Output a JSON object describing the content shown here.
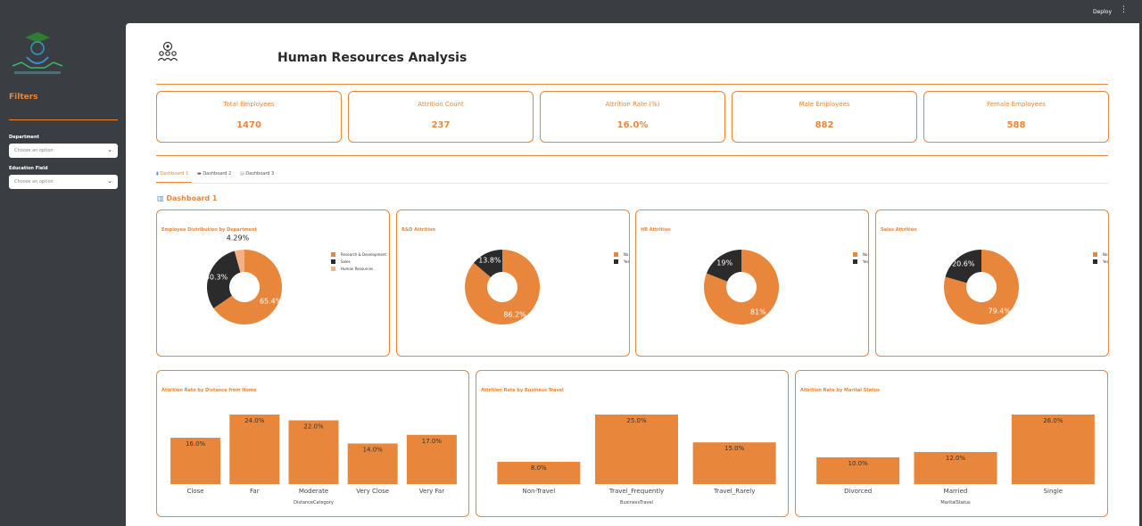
{
  "header": {
    "deploy_label": "Deploy",
    "menu_icon": "kebab-icon"
  },
  "sidebar": {
    "filters_title": "Filters",
    "department": {
      "label": "Department",
      "placeholder": "Choose an option"
    },
    "education_field": {
      "label": "Education Field",
      "placeholder": "Choose an option"
    }
  },
  "page": {
    "title": "Human Resources Analysis"
  },
  "kpis": [
    {
      "label": "Total Employees",
      "value": "1470"
    },
    {
      "label": "Attrition Count",
      "value": "237"
    },
    {
      "label": "Attrition Rate (%)",
      "value": "16.0%"
    },
    {
      "label": "Male Employees",
      "value": "882"
    },
    {
      "label": "Female Employees",
      "value": "588"
    }
  ],
  "tabs": [
    "Dashboard 1",
    "Dashboard 2",
    "Dashboard 3"
  ],
  "section_title": "Dashboard 1",
  "colors": {
    "accent": "#e8873c",
    "dark": "#2b2b2b",
    "light": "#f4b183"
  },
  "chart_data": [
    {
      "type": "pie",
      "title": "Employee Distribution by Department",
      "categories": [
        "Research & Development",
        "Sales",
        "Human Resources"
      ],
      "values": [
        65.4,
        30.3,
        4.29
      ],
      "labels": [
        "65.4%",
        "30.3%",
        "4.29%"
      ],
      "colors": [
        "#e8873c",
        "#2b2b2b",
        "#f4b183"
      ],
      "legend": "top-right"
    },
    {
      "type": "pie",
      "title": "R&D Attrition",
      "categories": [
        "No",
        "Yes"
      ],
      "values": [
        86.2,
        13.8
      ],
      "labels": [
        "86.2%",
        "13.8%"
      ],
      "colors": [
        "#e8873c",
        "#2b2b2b"
      ],
      "legend": "top-right"
    },
    {
      "type": "pie",
      "title": "HR Attrition",
      "categories": [
        "No",
        "Yes"
      ],
      "values": [
        81,
        19
      ],
      "labels": [
        "81%",
        "19%"
      ],
      "colors": [
        "#e8873c",
        "#2b2b2b"
      ],
      "legend": "top-right"
    },
    {
      "type": "pie",
      "title": "Sales Attrition",
      "categories": [
        "No",
        "Yes"
      ],
      "values": [
        79.4,
        20.6
      ],
      "labels": [
        "79.4%",
        "20.6%"
      ],
      "colors": [
        "#e8873c",
        "#2b2b2b"
      ],
      "legend": "top-right"
    },
    {
      "type": "bar",
      "title": "Attrition Rate by Distance from Home",
      "categories": [
        "Close",
        "Far",
        "Moderate",
        "Very Close",
        "Very Far"
      ],
      "values": [
        16.0,
        24.0,
        22.0,
        14.0,
        17.0
      ],
      "labels": [
        "16.0%",
        "24.0%",
        "22.0%",
        "14.0%",
        "17.0%"
      ],
      "xlabel": "DistanceCategory",
      "ylim": [
        0,
        24
      ]
    },
    {
      "type": "bar",
      "title": "Attrition Rate by Business Travel",
      "categories": [
        "Non-Travel",
        "Travel_Frequently",
        "Travel_Rarely"
      ],
      "values": [
        8.0,
        25.0,
        15.0
      ],
      "labels": [
        "8.0%",
        "25.0%",
        "15.0%"
      ],
      "xlabel": "BusinessTravel",
      "ylim": [
        0,
        25
      ]
    },
    {
      "type": "bar",
      "title": "Attrition Rate by Marital Status",
      "categories": [
        "Divorced",
        "Married",
        "Single"
      ],
      "values": [
        10.0,
        12.0,
        26.0
      ],
      "labels": [
        "10.0%",
        "12.0%",
        "26.0%"
      ],
      "xlabel": "MaritalStatus",
      "ylim": [
        0,
        26
      ]
    }
  ]
}
